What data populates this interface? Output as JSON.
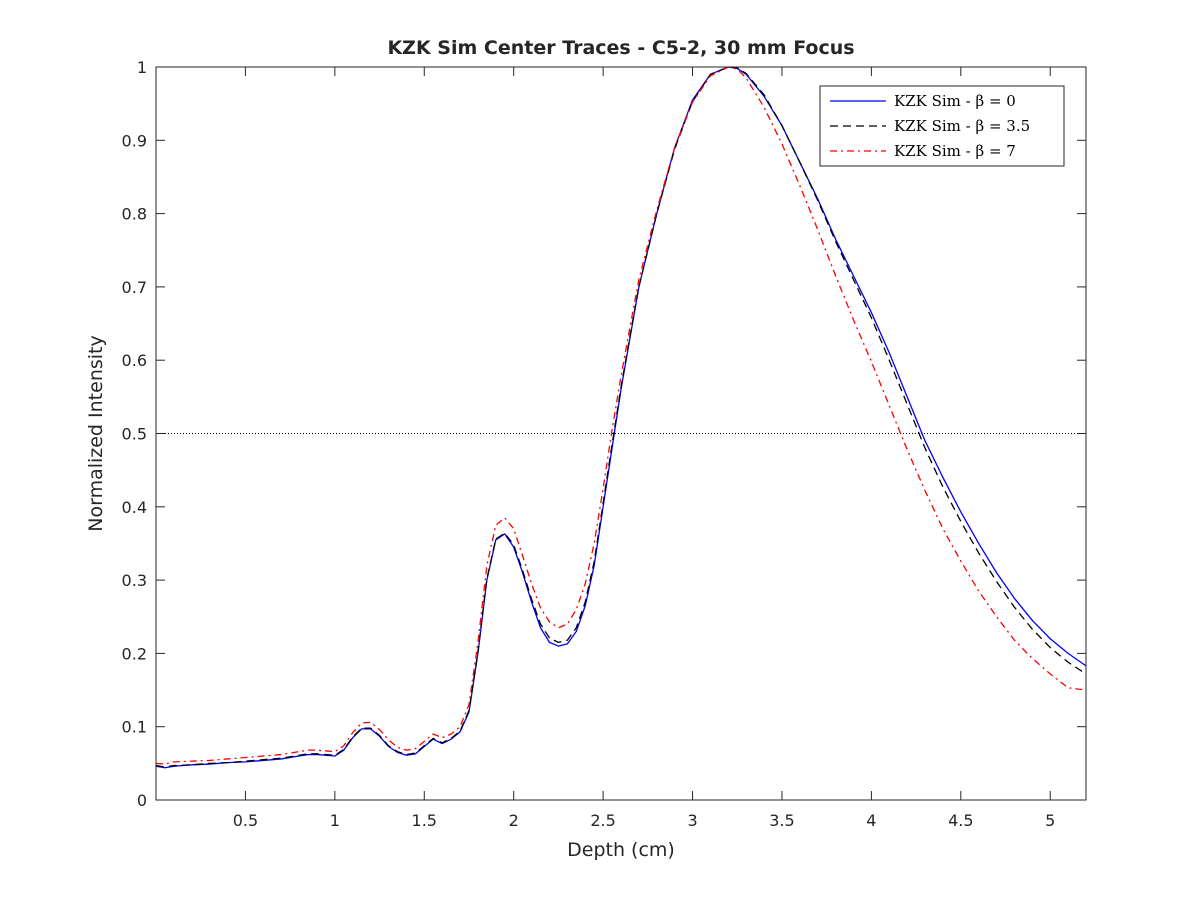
{
  "chart_data": {
    "type": "line",
    "title": "KZK Sim Center Traces - C5-2, 30 mm Focus",
    "xlabel": "Depth (cm)",
    "ylabel": "Normalized Intensity",
    "xlim": [
      0,
      5.2
    ],
    "ylim": [
      0,
      1
    ],
    "xticks": [
      0.5,
      1,
      1.5,
      2,
      2.5,
      3,
      3.5,
      4,
      4.5,
      5
    ],
    "xtick_labels": [
      "0.5",
      "1",
      "1.5",
      "2",
      "2.5",
      "3",
      "3.5",
      "4",
      "4.5",
      "5"
    ],
    "yticks": [
      0,
      0.1,
      0.2,
      0.3,
      0.4,
      0.5,
      0.6,
      0.7,
      0.8,
      0.9,
      1
    ],
    "ytick_labels": [
      "0",
      "0.1",
      "0.2",
      "0.3",
      "0.4",
      "0.5",
      "0.6",
      "0.7",
      "0.8",
      "0.9",
      "1"
    ],
    "grid": false,
    "legend_position": "top-right",
    "reference_line": {
      "y": 0.5,
      "style": "dotted",
      "color": "#000000"
    },
    "series": [
      {
        "name": "KZK Sim - β = 0",
        "color": "#0000ff",
        "style": "solid",
        "x": [
          0,
          0.05,
          0.1,
          0.2,
          0.3,
          0.4,
          0.5,
          0.6,
          0.7,
          0.8,
          0.85,
          0.9,
          1.0,
          1.05,
          1.1,
          1.15,
          1.2,
          1.25,
          1.3,
          1.35,
          1.4,
          1.45,
          1.5,
          1.55,
          1.6,
          1.65,
          1.7,
          1.75,
          1.8,
          1.85,
          1.9,
          1.95,
          2.0,
          2.05,
          2.1,
          2.15,
          2.2,
          2.25,
          2.3,
          2.35,
          2.4,
          2.45,
          2.5,
          2.55,
          2.6,
          2.65,
          2.7,
          2.8,
          2.9,
          3.0,
          3.1,
          3.2,
          3.25,
          3.3,
          3.4,
          3.5,
          3.6,
          3.7,
          3.8,
          3.9,
          4.0,
          4.1,
          4.2,
          4.3,
          4.4,
          4.5,
          4.6,
          4.7,
          4.8,
          4.9,
          5.0,
          5.1,
          5.2
        ],
        "y": [
          0.046,
          0.044,
          0.046,
          0.048,
          0.049,
          0.051,
          0.052,
          0.054,
          0.056,
          0.06,
          0.062,
          0.062,
          0.06,
          0.068,
          0.085,
          0.097,
          0.097,
          0.087,
          0.073,
          0.065,
          0.061,
          0.063,
          0.073,
          0.083,
          0.077,
          0.083,
          0.093,
          0.12,
          0.2,
          0.3,
          0.355,
          0.363,
          0.345,
          0.31,
          0.27,
          0.235,
          0.215,
          0.21,
          0.213,
          0.23,
          0.265,
          0.32,
          0.4,
          0.48,
          0.56,
          0.63,
          0.7,
          0.8,
          0.89,
          0.955,
          0.99,
          1.0,
          0.998,
          0.99,
          0.96,
          0.92,
          0.87,
          0.82,
          0.765,
          0.715,
          0.665,
          0.61,
          0.55,
          0.49,
          0.44,
          0.393,
          0.35,
          0.31,
          0.275,
          0.245,
          0.22,
          0.2,
          0.183
        ]
      },
      {
        "name": "KZK Sim - β = 3.5",
        "color": "#000000",
        "style": "dashed",
        "x": [
          0,
          0.05,
          0.1,
          0.2,
          0.3,
          0.4,
          0.5,
          0.6,
          0.7,
          0.8,
          0.85,
          0.9,
          1.0,
          1.05,
          1.1,
          1.15,
          1.2,
          1.25,
          1.3,
          1.35,
          1.4,
          1.45,
          1.5,
          1.55,
          1.6,
          1.65,
          1.7,
          1.75,
          1.8,
          1.85,
          1.9,
          1.95,
          2.0,
          2.05,
          2.1,
          2.15,
          2.2,
          2.25,
          2.3,
          2.35,
          2.4,
          2.45,
          2.5,
          2.55,
          2.6,
          2.65,
          2.7,
          2.8,
          2.9,
          3.0,
          3.1,
          3.2,
          3.25,
          3.3,
          3.4,
          3.5,
          3.6,
          3.7,
          3.8,
          3.9,
          4.0,
          4.1,
          4.2,
          4.3,
          4.4,
          4.5,
          4.6,
          4.7,
          4.8,
          4.9,
          5.0,
          5.1,
          5.2
        ],
        "y": [
          0.047,
          0.045,
          0.047,
          0.048,
          0.05,
          0.051,
          0.053,
          0.055,
          0.057,
          0.061,
          0.063,
          0.063,
          0.061,
          0.069,
          0.086,
          0.098,
          0.098,
          0.088,
          0.074,
          0.066,
          0.062,
          0.064,
          0.074,
          0.084,
          0.078,
          0.084,
          0.094,
          0.122,
          0.202,
          0.302,
          0.356,
          0.364,
          0.348,
          0.313,
          0.274,
          0.24,
          0.221,
          0.215,
          0.218,
          0.235,
          0.27,
          0.325,
          0.405,
          0.485,
          0.563,
          0.633,
          0.7,
          0.8,
          0.888,
          0.953,
          0.99,
          1.0,
          0.999,
          0.991,
          0.962,
          0.92,
          0.87,
          0.818,
          0.762,
          0.71,
          0.658,
          0.6,
          0.54,
          0.48,
          0.427,
          0.38,
          0.337,
          0.298,
          0.263,
          0.233,
          0.208,
          0.188,
          0.172
        ]
      },
      {
        "name": "KZK Sim - β = 7",
        "color": "#ff0000",
        "style": "dashdot",
        "x": [
          0,
          0.05,
          0.1,
          0.2,
          0.3,
          0.4,
          0.5,
          0.6,
          0.7,
          0.8,
          0.85,
          0.9,
          1.0,
          1.05,
          1.1,
          1.15,
          1.2,
          1.25,
          1.3,
          1.35,
          1.4,
          1.45,
          1.5,
          1.55,
          1.6,
          1.65,
          1.7,
          1.75,
          1.8,
          1.85,
          1.9,
          1.95,
          2.0,
          2.05,
          2.1,
          2.15,
          2.2,
          2.25,
          2.3,
          2.35,
          2.4,
          2.45,
          2.5,
          2.55,
          2.6,
          2.65,
          2.7,
          2.8,
          2.9,
          3.0,
          3.1,
          3.2,
          3.25,
          3.3,
          3.4,
          3.5,
          3.6,
          3.7,
          3.8,
          3.9,
          4.0,
          4.1,
          4.2,
          4.3,
          4.4,
          4.5,
          4.6,
          4.7,
          4.8,
          4.9,
          5.0,
          5.1,
          5.2
        ],
        "y": [
          0.05,
          0.049,
          0.052,
          0.053,
          0.054,
          0.056,
          0.058,
          0.06,
          0.062,
          0.066,
          0.068,
          0.068,
          0.066,
          0.074,
          0.092,
          0.105,
          0.106,
          0.096,
          0.082,
          0.072,
          0.068,
          0.07,
          0.08,
          0.09,
          0.085,
          0.09,
          0.1,
          0.13,
          0.215,
          0.32,
          0.375,
          0.385,
          0.37,
          0.333,
          0.295,
          0.262,
          0.243,
          0.235,
          0.24,
          0.26,
          0.295,
          0.35,
          0.425,
          0.505,
          0.578,
          0.645,
          0.71,
          0.805,
          0.89,
          0.952,
          0.988,
          1.0,
          0.997,
          0.985,
          0.945,
          0.895,
          0.838,
          0.778,
          0.715,
          0.655,
          0.598,
          0.538,
          0.478,
          0.422,
          0.37,
          0.326,
          0.285,
          0.25,
          0.218,
          0.193,
          0.172,
          0.153,
          0.15
        ]
      }
    ]
  }
}
